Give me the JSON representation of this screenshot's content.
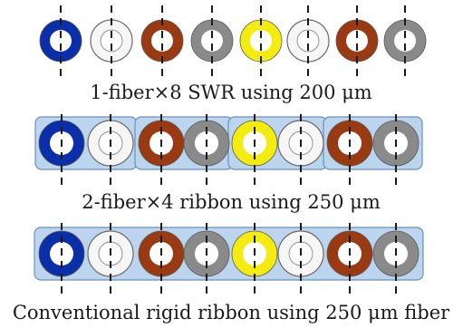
{
  "rows": [
    {
      "caption": "1-fiber×8 SWR using 200 μm",
      "kind": "swr",
      "fibers": [
        "blue",
        "white",
        "brown",
        "gray",
        "yellow",
        "white",
        "brown",
        "gray"
      ]
    },
    {
      "caption": "2-fiber×4 ribbon using 250 μm",
      "kind": "ribbon-pairs",
      "fibers": [
        "blue",
        "white",
        "brown",
        "gray",
        "yellow",
        "white",
        "brown",
        "gray"
      ]
    },
    {
      "caption": "Conventional rigid ribbon using 250 μm fiber",
      "kind": "ribbon-full",
      "fibers": [
        "blue",
        "white",
        "brown",
        "gray",
        "yellow",
        "white",
        "brown",
        "gray"
      ]
    }
  ],
  "colors": {
    "blue": "#0a2fa8",
    "white": "#f6f6f6",
    "brown": "#9a3a12",
    "gray": "#8a8a8a",
    "yellow": "#f4ec10",
    "ribbon_fill": "#bcd5ee",
    "ribbon_stroke": "#6e8fb6",
    "outline": "#5a5a5a"
  }
}
